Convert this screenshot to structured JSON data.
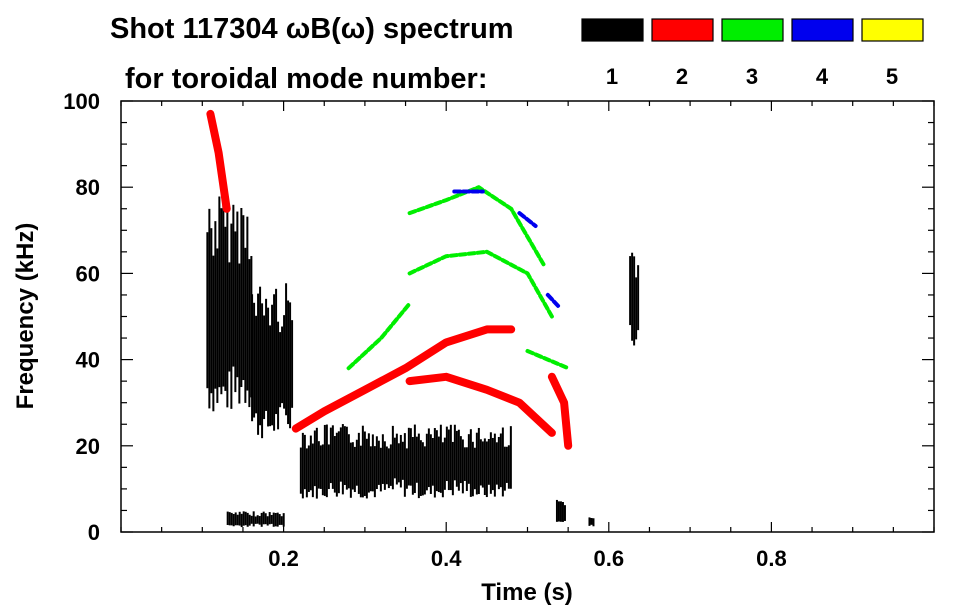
{
  "chart_data": {
    "type": "heatmap",
    "title": "Shot 117304 ωB(ω) spectrum",
    "subtitle": "for toroidal mode number:",
    "xlabel": "Time (s)",
    "ylabel": "Frequency (kHz)",
    "xlim": [
      0.0,
      1.0
    ],
    "ylim": [
      0,
      100
    ],
    "x_ticks": [
      "0.2",
      "0.4",
      "0.6",
      "0.8"
    ],
    "y_ticks": [
      "0",
      "20",
      "40",
      "60",
      "80",
      "100"
    ],
    "grid": false,
    "legend": {
      "placement": "top-right",
      "entries": [
        {
          "label": "1",
          "color": "#000000"
        },
        {
          "label": "2",
          "color": "#ff0000"
        },
        {
          "label": "3",
          "color": "#00ee00"
        },
        {
          "label": "4",
          "color": "#0000ee"
        },
        {
          "label": "5",
          "color": "#ffff00"
        }
      ]
    },
    "series": [
      {
        "mode": "1",
        "color": "#000000",
        "regions": [
          {
            "t": [
              0.105,
              0.16
            ],
            "f": [
              25,
              82
            ]
          },
          {
            "t": [
              0.16,
              0.21
            ],
            "f": [
              20,
              60
            ]
          },
          {
            "t": [
              0.22,
              0.48
            ],
            "f": [
              7,
              26
            ]
          },
          {
            "t": [
              0.625,
              0.635
            ],
            "f": [
              42,
              68
            ]
          },
          {
            "t": [
              0.13,
              0.2
            ],
            "f": [
              1,
              5
            ]
          },
          {
            "t": [
              0.535,
              0.545
            ],
            "f": [
              2,
              8
            ]
          },
          {
            "t": [
              0.575,
              0.58
            ],
            "f": [
              1,
              4
            ]
          }
        ]
      },
      {
        "mode": "2",
        "color": "#ff0000",
        "bands": [
          {
            "points": [
              [
                0.215,
                24
              ],
              [
                0.25,
                28
              ],
              [
                0.3,
                33
              ],
              [
                0.35,
                38
              ],
              [
                0.4,
                44
              ],
              [
                0.45,
                47
              ],
              [
                0.48,
                47
              ]
            ]
          },
          {
            "points": [
              [
                0.355,
                35
              ],
              [
                0.4,
                36
              ],
              [
                0.45,
                33
              ],
              [
                0.49,
                30
              ],
              [
                0.53,
                23
              ]
            ]
          },
          {
            "points": [
              [
                0.53,
                36
              ],
              [
                0.545,
                30
              ],
              [
                0.55,
                20
              ]
            ]
          },
          {
            "points": [
              [
                0.11,
                97
              ],
              [
                0.12,
                88
              ],
              [
                0.13,
                75
              ]
            ]
          }
        ]
      },
      {
        "mode": "3",
        "color": "#00ee00",
        "bands": [
          {
            "points": [
              [
                0.355,
                60
              ],
              [
                0.4,
                64
              ],
              [
                0.45,
                65
              ],
              [
                0.5,
                60
              ],
              [
                0.53,
                50
              ]
            ]
          },
          {
            "points": [
              [
                0.355,
                74
              ],
              [
                0.4,
                77
              ],
              [
                0.44,
                80
              ],
              [
                0.48,
                75
              ],
              [
                0.52,
                62
              ]
            ]
          },
          {
            "points": [
              [
                0.28,
                38
              ],
              [
                0.32,
                45
              ],
              [
                0.355,
                53
              ]
            ]
          },
          {
            "points": [
              [
                0.5,
                42
              ],
              [
                0.525,
                40
              ],
              [
                0.55,
                38
              ]
            ]
          }
        ]
      },
      {
        "mode": "4",
        "color": "#0000ee",
        "bands": [
          {
            "points": [
              [
                0.41,
                79
              ],
              [
                0.445,
                79
              ]
            ]
          },
          {
            "points": [
              [
                0.49,
                74
              ],
              [
                0.51,
                71
              ]
            ]
          },
          {
            "points": [
              [
                0.525,
                55
              ],
              [
                0.54,
                52
              ]
            ]
          }
        ]
      },
      {
        "mode": "5",
        "color": "#ffff00",
        "bands": []
      }
    ]
  }
}
